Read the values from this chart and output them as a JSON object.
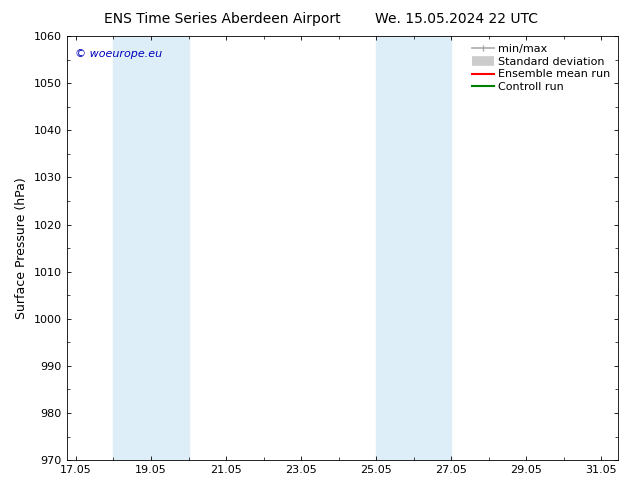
{
  "title_left": "ENS Time Series Aberdeen Airport",
  "title_right": "We. 15.05.2024 22 UTC",
  "ylabel": "Surface Pressure (hPa)",
  "ylim": [
    970,
    1060
  ],
  "yticks": [
    970,
    980,
    990,
    1000,
    1010,
    1020,
    1030,
    1040,
    1050,
    1060
  ],
  "xlim_start": 16.8,
  "xlim_end": 31.5,
  "xtick_labels": [
    "17.05",
    "19.05",
    "21.05",
    "23.05",
    "25.05",
    "27.05",
    "29.05",
    "31.05"
  ],
  "xtick_positions": [
    17.05,
    19.05,
    21.05,
    23.05,
    25.05,
    27.05,
    29.05,
    31.05
  ],
  "shaded_bands": [
    {
      "x_start": 18.05,
      "x_end": 20.05
    },
    {
      "x_start": 25.05,
      "x_end": 27.05
    }
  ],
  "shaded_color": "#ddeef8",
  "watermark_text": "© woeurope.eu",
  "watermark_color": "#0000bb",
  "legend_items": [
    {
      "label": "min/max",
      "color": "#aaaaaa",
      "lw": 1.2
    },
    {
      "label": "Standard deviation",
      "color": "#cccccc",
      "lw": 7
    },
    {
      "label": "Ensemble mean run",
      "color": "#ff0000",
      "lw": 1.5
    },
    {
      "label": "Controll run",
      "color": "#008000",
      "lw": 1.5
    }
  ],
  "bg_color": "#ffffff",
  "axes_bg_color": "#ffffff",
  "title_fontsize": 10,
  "tick_fontsize": 8,
  "ylabel_fontsize": 9,
  "legend_fontsize": 8,
  "watermark_fontsize": 8
}
